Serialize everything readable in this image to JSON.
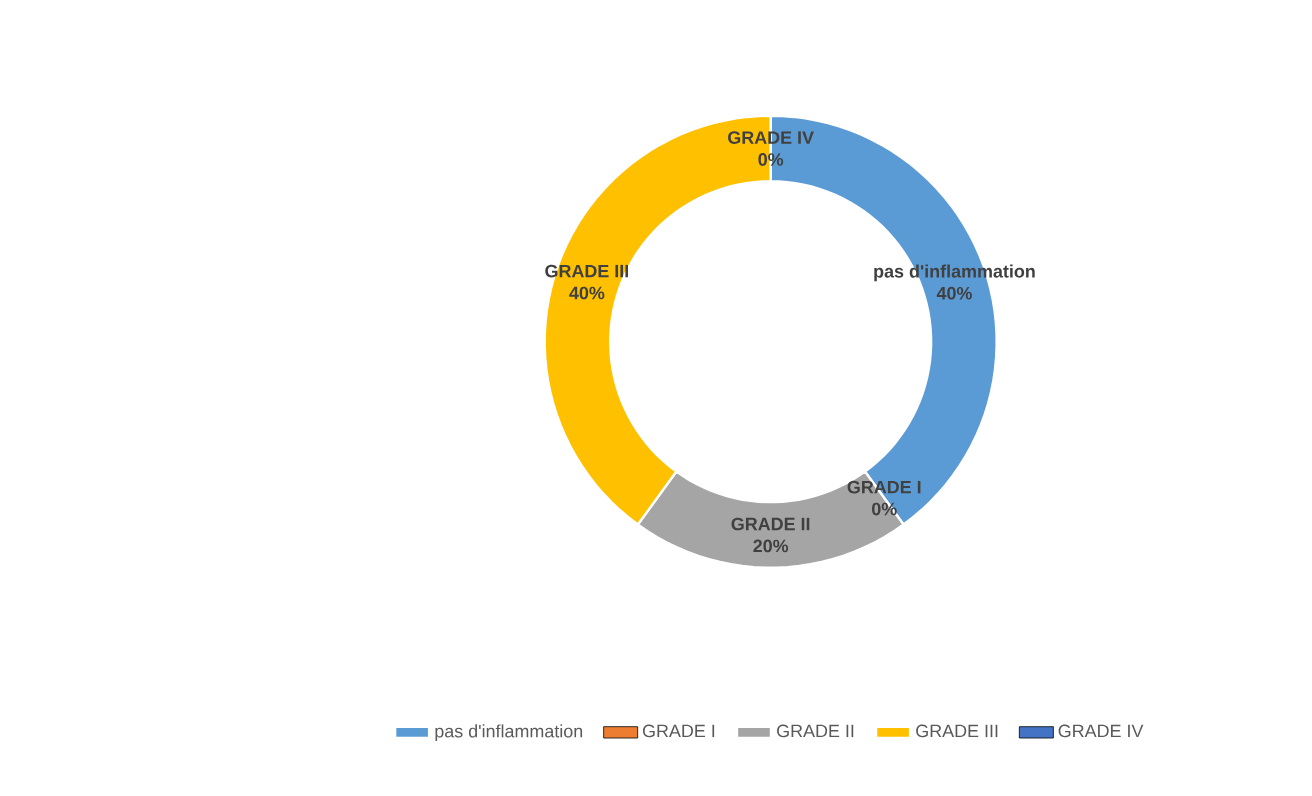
{
  "chart_data": {
    "type": "donut",
    "categories": [
      "pas d'inflammation",
      "GRADE I",
      "GRADE II",
      "GRADE III",
      "GRADE IV"
    ],
    "values": [
      40,
      0,
      20,
      40,
      0
    ],
    "value_labels": [
      "40%",
      "0%",
      "20%",
      "40%",
      "0%"
    ],
    "colors": [
      "#5b9bd5",
      "#ed7d31",
      "#a5a5a5",
      "#ffc000",
      "#4472c4"
    ],
    "legend": "bottom"
  }
}
